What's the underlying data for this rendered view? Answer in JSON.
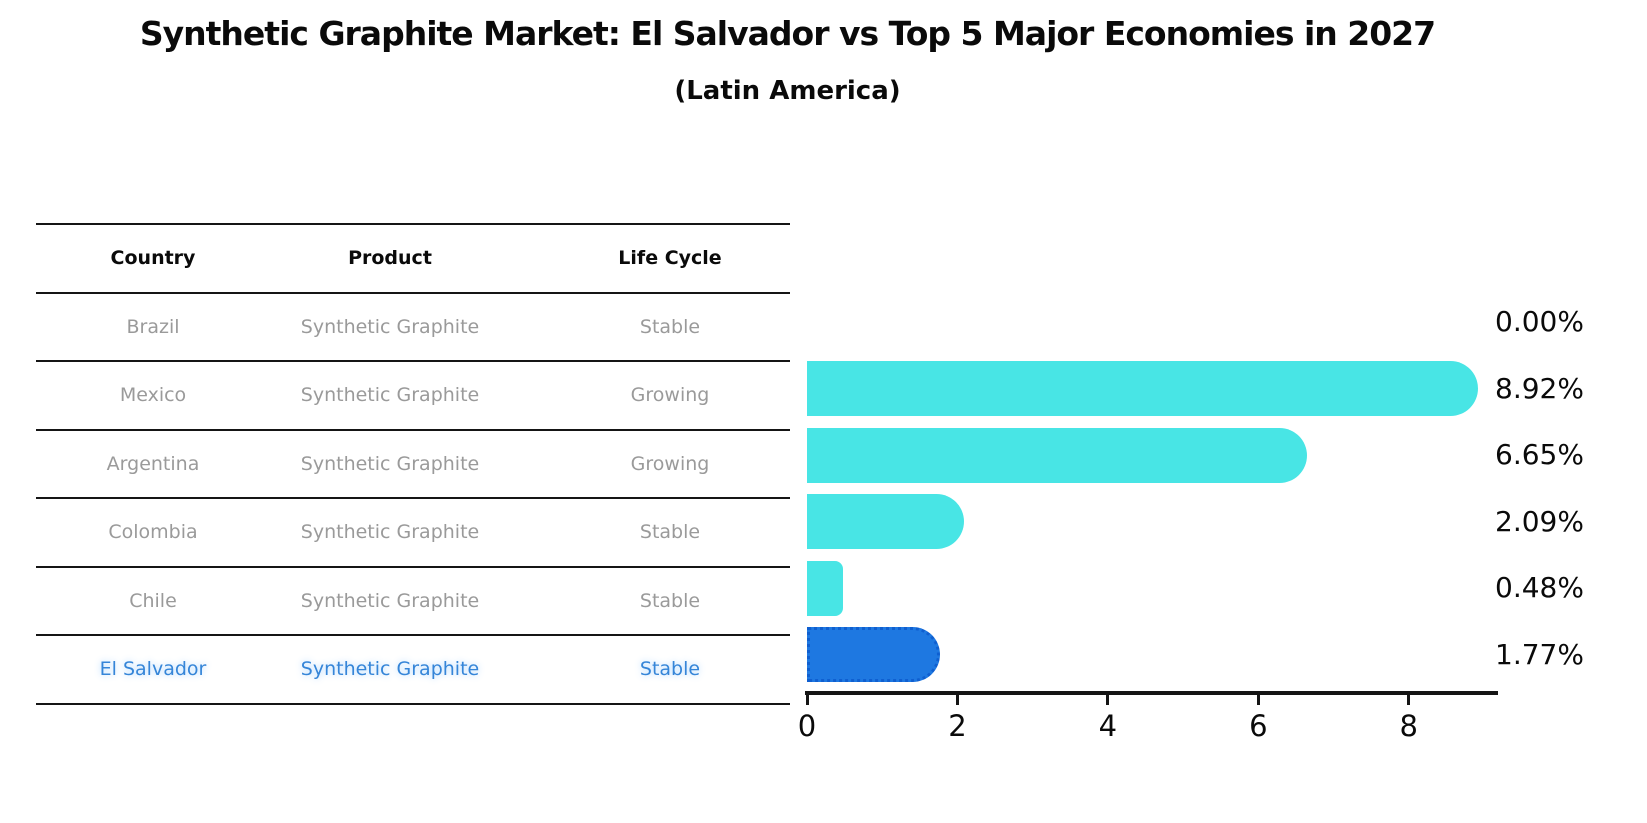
{
  "header": {
    "title": "Synthetic Graphite Market: El Salvador vs Top 5 Major Economies in 2027",
    "subtitle": "(Latin America)"
  },
  "table": {
    "columns": [
      "Country",
      "Product",
      "Life Cycle"
    ],
    "rows": [
      {
        "country": "Brazil",
        "product": "Synthetic Graphite",
        "life_cycle": "Stable",
        "highlight": false
      },
      {
        "country": "Mexico",
        "product": "Synthetic Graphite",
        "life_cycle": "Growing",
        "highlight": false
      },
      {
        "country": "Argentina",
        "product": "Synthetic Graphite",
        "life_cycle": "Growing",
        "highlight": false
      },
      {
        "country": "Colombia",
        "product": "Synthetic Graphite",
        "life_cycle": "Stable",
        "highlight": false
      },
      {
        "country": "Chile",
        "product": "Synthetic Graphite",
        "life_cycle": "Stable",
        "highlight": false
      },
      {
        "country": "El Salvador",
        "product": "Synthetic Graphite",
        "life_cycle": "Stable",
        "highlight": true
      }
    ]
  },
  "chart_data": {
    "type": "bar",
    "orientation": "horizontal",
    "title": "Synthetic Graphite Market: El Salvador vs Top 5 Major Economies in 2027",
    "subtitle": "(Latin America)",
    "categories": [
      "Brazil",
      "Mexico",
      "Argentina",
      "Colombia",
      "Chile",
      "El Salvador"
    ],
    "values": [
      0.0,
      8.92,
      6.65,
      2.09,
      0.48,
      1.77
    ],
    "value_labels": [
      "0.00%",
      "8.92%",
      "6.65%",
      "2.09%",
      "0.48%",
      "1.77%"
    ],
    "x_ticks": [
      0,
      2,
      4,
      6,
      8
    ],
    "xlim": [
      0,
      9.16
    ],
    "ylabel": "",
    "xlabel": "",
    "grid": false,
    "legend": false,
    "highlight_index": 5
  },
  "colors": {
    "bar": "#48E5E5",
    "highlight_bar": "#1E78E1",
    "highlight_border": "#0F5FD0",
    "highlight_text": "#3585D8",
    "table_text": "#9A9A9A",
    "line": "#151515",
    "label": "#0A0A0A"
  }
}
